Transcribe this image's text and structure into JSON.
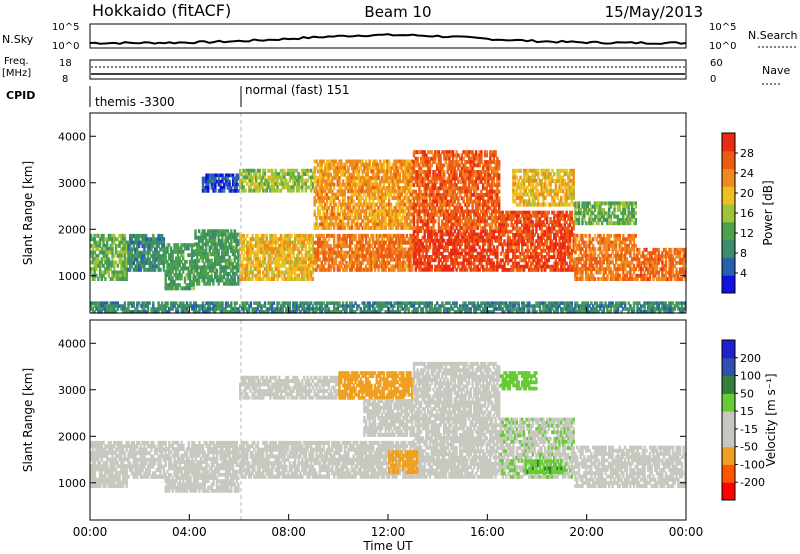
{
  "header": {
    "station": "Hokkaido (fitACF)",
    "beam": "Beam 10",
    "date": "15/May/2013"
  },
  "summary": {
    "nsky_label": "N.Sky",
    "nsky_ticks": [
      "10^5",
      "10^0"
    ],
    "nsearch_label": "N.Search",
    "nsearch_ticks": [
      "10^5",
      "10^0"
    ],
    "freq_label": "Freq.",
    "freq_unit": "[MHz]",
    "freq_ticks": [
      "18",
      "8"
    ],
    "nave_label": "Nave",
    "nave_ticks": [
      "60",
      "0"
    ],
    "cpid_label": "CPID",
    "cpid_modes": [
      {
        "name": "themis -3300",
        "start_hour": 0,
        "end_hour": 6
      },
      {
        "name": "normal (fast) 151",
        "start_hour": 6,
        "end_hour": 24
      }
    ]
  },
  "colors": {
    "power": [
      "#1010e0",
      "#2a5fb0",
      "#3a8c6a",
      "#4ca24c",
      "#9fc43a",
      "#f0c020",
      "#f08a1e",
      "#ee5b12",
      "#ea2a14"
    ],
    "velocity": [
      "#ff0000",
      "#ff5500",
      "#f0a020",
      "#c8c8c0",
      "#c8c8c0",
      "#66cc33",
      "#30803a",
      "#3050b0",
      "#2020d0"
    ]
  },
  "chart_data": [
    {
      "type": "heatmap",
      "name": "power",
      "ylabel": "Slant Range [km]",
      "yticks": [
        "1000",
        "2000",
        "3000",
        "4000"
      ],
      "ylim": [
        200,
        4500
      ],
      "xlim": [
        0,
        24
      ],
      "colorbar_label": "Power [dB]",
      "colorbar_ticks": [
        "4",
        "8",
        "12",
        "16",
        "20",
        "24",
        "28"
      ],
      "bands": [
        {
          "t0": 0,
          "t1": 1.5,
          "r0": 900,
          "r1": 1900,
          "v": 14
        },
        {
          "t0": 1.5,
          "t1": 3.0,
          "r0": 1100,
          "r1": 1900,
          "v": 10
        },
        {
          "t0": 3.0,
          "t1": 4.2,
          "r0": 700,
          "r1": 1700,
          "v": 12
        },
        {
          "t0": 4.2,
          "t1": 6.0,
          "r0": 800,
          "r1": 2000,
          "v": 12
        },
        {
          "t0": 4.5,
          "t1": 6.0,
          "r0": 2800,
          "r1": 3200,
          "v": 6
        },
        {
          "t0": 6.0,
          "t1": 9.0,
          "r0": 900,
          "r1": 1900,
          "v": 20
        },
        {
          "t0": 6.0,
          "t1": 9.0,
          "r0": 2800,
          "r1": 3300,
          "v": 16
        },
        {
          "t0": 9.0,
          "t1": 13.0,
          "r0": 1100,
          "r1": 1900,
          "v": 24
        },
        {
          "t0": 9.0,
          "t1": 13.0,
          "r0": 2000,
          "r1": 3500,
          "v": 22
        },
        {
          "t0": 13.0,
          "t1": 16.5,
          "r0": 1100,
          "r1": 2000,
          "v": 28
        },
        {
          "t0": 13.0,
          "t1": 16.5,
          "r0": 2000,
          "r1": 3700,
          "v": 26
        },
        {
          "t0": 16.5,
          "t1": 19.5,
          "r0": 1100,
          "r1": 2400,
          "v": 27
        },
        {
          "t0": 17.0,
          "t1": 19.5,
          "r0": 2500,
          "r1": 3300,
          "v": 20
        },
        {
          "t0": 19.5,
          "t1": 22.0,
          "r0": 900,
          "r1": 1900,
          "v": 24
        },
        {
          "t0": 19.5,
          "t1": 22.0,
          "r0": 2100,
          "r1": 2600,
          "v": 14
        },
        {
          "t0": 22.0,
          "t1": 24.0,
          "r0": 900,
          "r1": 1600,
          "v": 25
        },
        {
          "t0": 0,
          "t1": 24.0,
          "r0": 200,
          "r1": 450,
          "v": 10
        }
      ]
    },
    {
      "type": "heatmap",
      "name": "velocity",
      "xlabel": "Time UT",
      "xticks": [
        "00:00",
        "04:00",
        "08:00",
        "12:00",
        "16:00",
        "20:00",
        "00:00"
      ],
      "ylabel": "Slant Range [km]",
      "yticks": [
        "1000",
        "2000",
        "3000",
        "4000"
      ],
      "ylim": [
        200,
        4500
      ],
      "xlim": [
        0,
        24
      ],
      "colorbar_label": "Velocity [m s⁻¹]",
      "colorbar_ticks": [
        "200",
        "100",
        "50",
        "15",
        "-15",
        "-50",
        "-100",
        "-200"
      ],
      "bands": [
        {
          "t0": 0,
          "t1": 1.5,
          "r0": 900,
          "r1": 1900,
          "v": 0
        },
        {
          "t0": 1.5,
          "t1": 3.0,
          "r0": 1100,
          "r1": 1900,
          "v": 0
        },
        {
          "t0": 3.0,
          "t1": 6.0,
          "r0": 800,
          "r1": 1900,
          "v": 0
        },
        {
          "t0": 6.0,
          "t1": 9.0,
          "r0": 1100,
          "r1": 1900,
          "v": 0
        },
        {
          "t0": 6.0,
          "t1": 10.0,
          "r0": 2800,
          "r1": 3300,
          "v": 0
        },
        {
          "t0": 9.0,
          "t1": 13.0,
          "r0": 1100,
          "r1": 1900,
          "v": -5
        },
        {
          "t0": 10.0,
          "t1": 13.0,
          "r0": 2800,
          "r1": 3400,
          "v": -60
        },
        {
          "t0": 11.0,
          "t1": 13.0,
          "r0": 2000,
          "r1": 2800,
          "v": 0
        },
        {
          "t0": 13.0,
          "t1": 16.5,
          "r0": 1100,
          "r1": 2000,
          "v": 0
        },
        {
          "t0": 13.0,
          "t1": 16.5,
          "r0": 2000,
          "r1": 3600,
          "v": 0
        },
        {
          "t0": 16.5,
          "t1": 19.5,
          "r0": 1100,
          "r1": 2400,
          "v": 10
        },
        {
          "t0": 16.5,
          "t1": 18.0,
          "r0": 3000,
          "r1": 3400,
          "v": 40
        },
        {
          "t0": 19.5,
          "t1": 24.0,
          "r0": 900,
          "r1": 1800,
          "v": 0
        },
        {
          "t0": 12.0,
          "t1": 13.2,
          "r0": 1200,
          "r1": 1700,
          "v": -70
        },
        {
          "t0": 17.5,
          "t1": 19.0,
          "r0": 1200,
          "r1": 1500,
          "v": 45
        }
      ]
    }
  ]
}
